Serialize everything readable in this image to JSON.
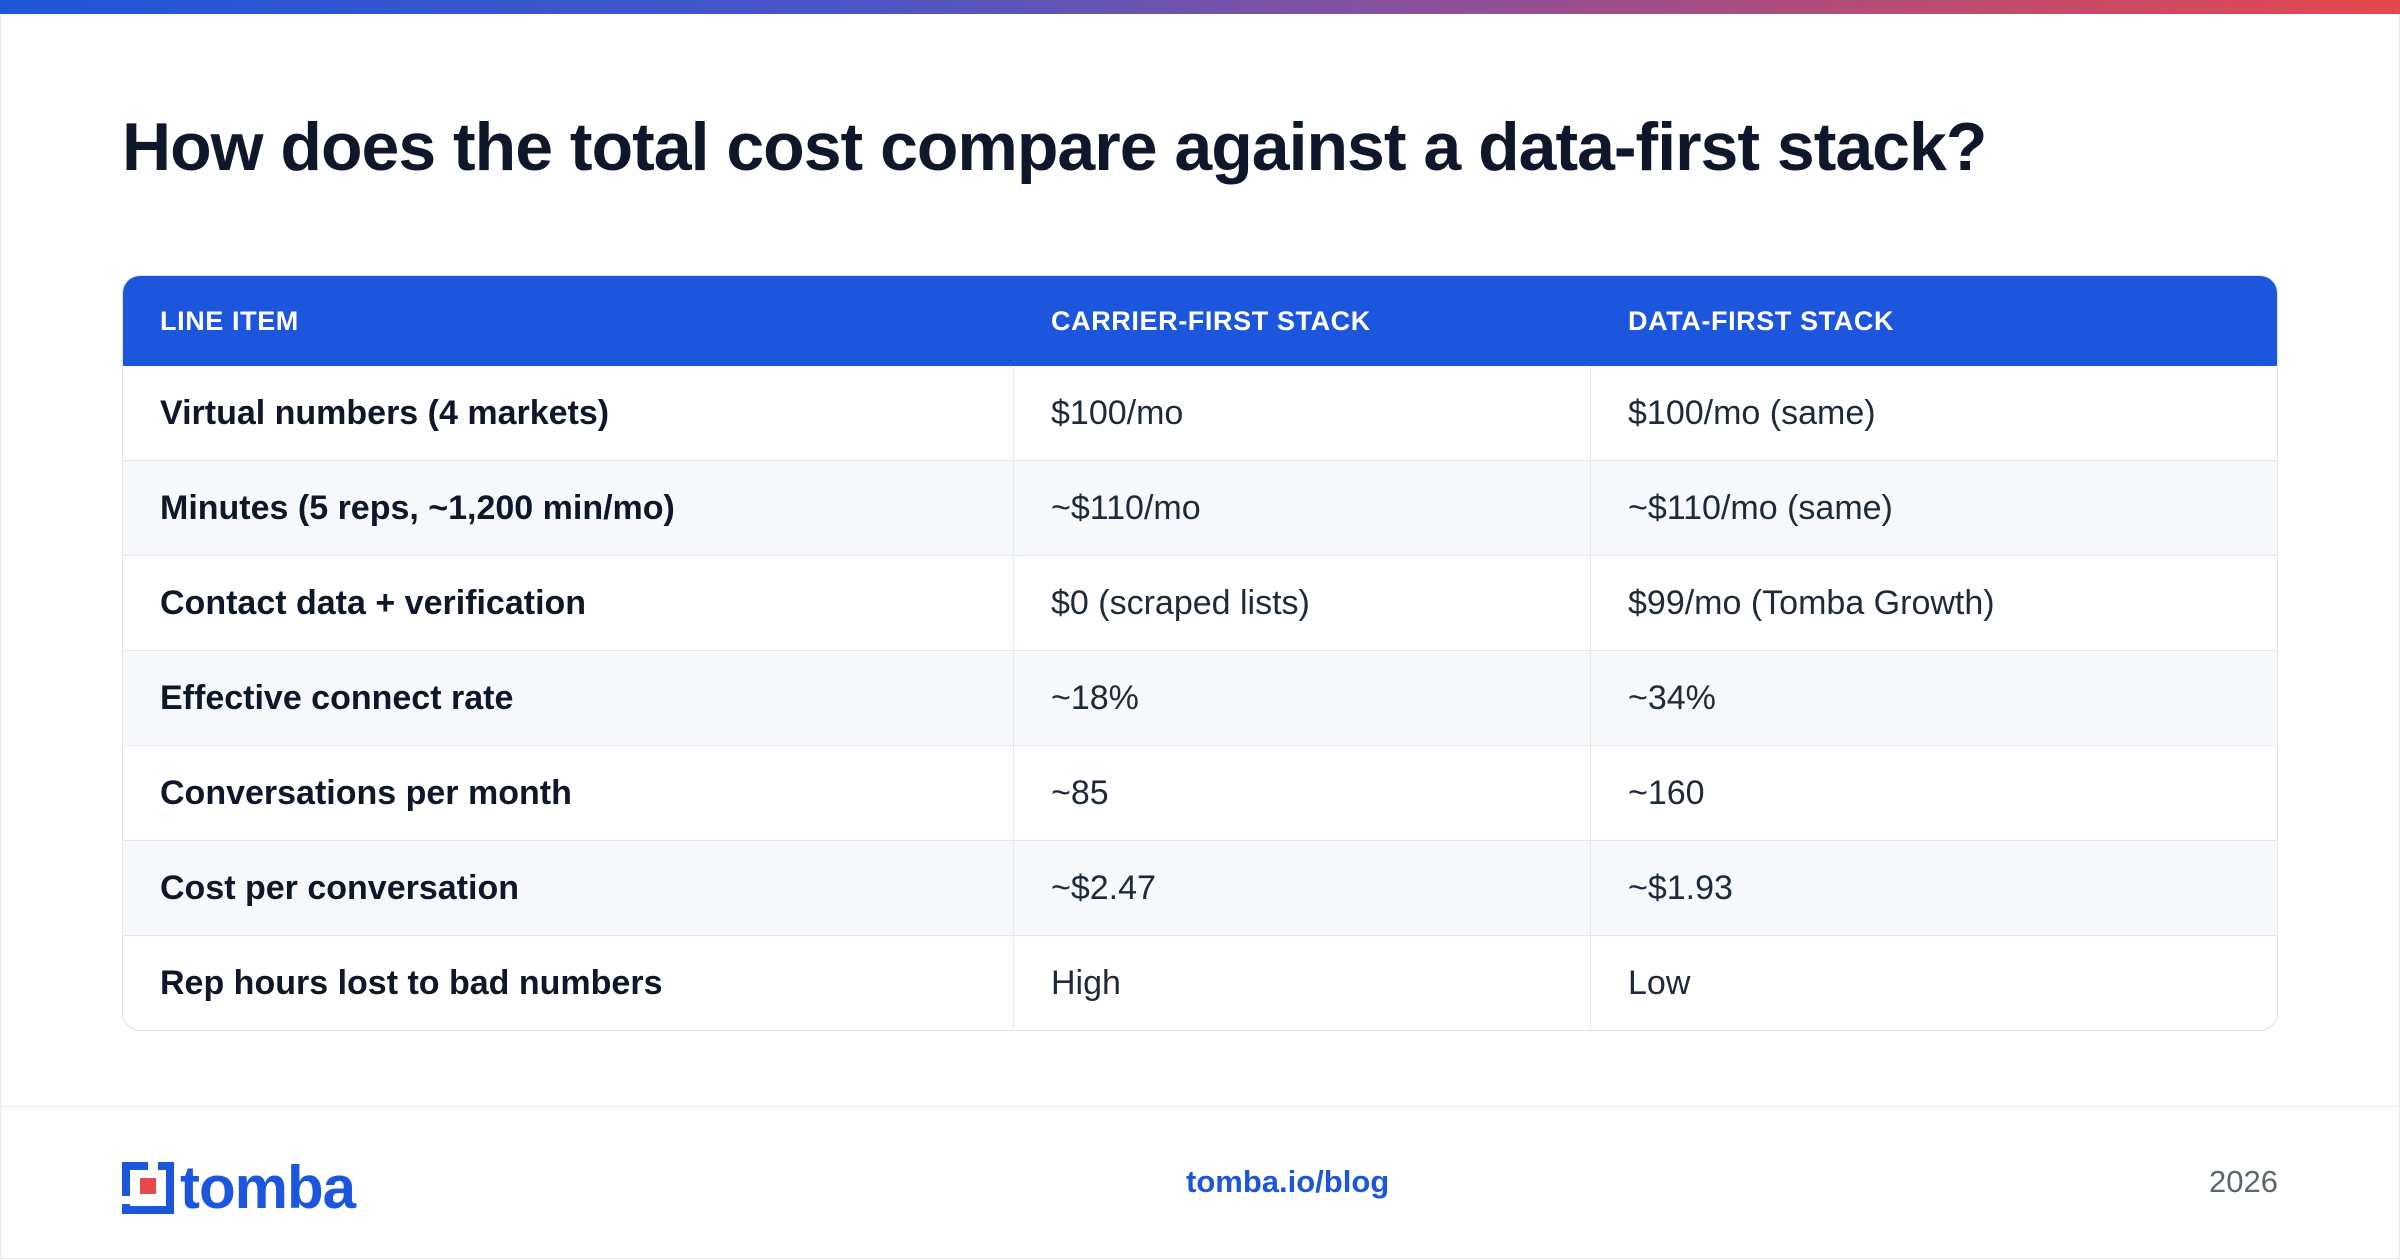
{
  "title": "How does the total cost compare against a data-first stack?",
  "table": {
    "headers": [
      "LINE ITEM",
      "CARRIER-FIRST STACK",
      "DATA-FIRST STACK"
    ],
    "rows": [
      [
        "Virtual numbers (4 markets)",
        "$100/mo",
        "$100/mo (same)"
      ],
      [
        "Minutes (5 reps, ~1,200 min/mo)",
        "~$110/mo",
        "~$110/mo (same)"
      ],
      [
        "Contact data + verification",
        "$0 (scraped lists)",
        "$99/mo (Tomba Growth)"
      ],
      [
        "Effective connect rate",
        "~18%",
        "~34%"
      ],
      [
        "Conversations per month",
        "~85",
        "~160"
      ],
      [
        "Cost per conversation",
        "~$2.47",
        "~$1.93"
      ],
      [
        "Rep hours lost to bad numbers",
        "High",
        "Low"
      ]
    ]
  },
  "footer": {
    "logo_text": "tomba",
    "link": "tomba.io/blog",
    "year": "2026"
  },
  "colors": {
    "accent": "#1b56dc",
    "gradient_start": "#1f56d8",
    "gradient_end": "#e5484d"
  }
}
